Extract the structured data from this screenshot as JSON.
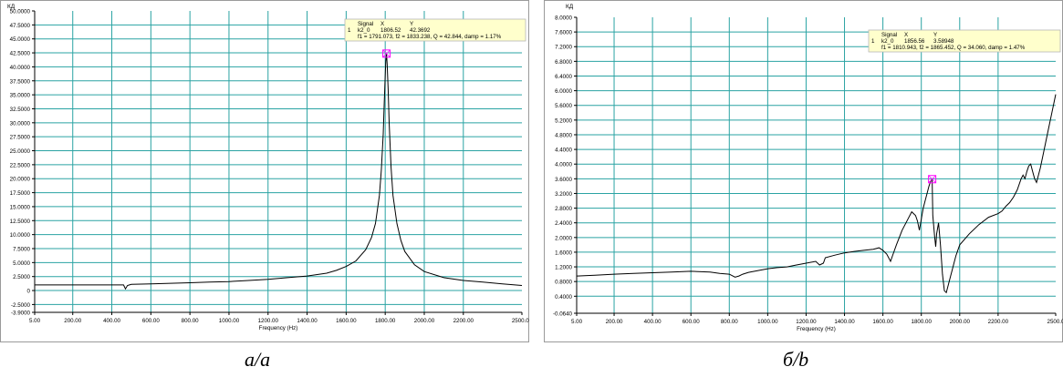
{
  "chart_data": [
    {
      "type": "line",
      "ylabel": "КД",
      "xlabel": "Frequency (Hz)",
      "x_ticks": [
        "5.00",
        "200.00",
        "400.00",
        "600.00",
        "800.00",
        "1000.00",
        "1200.00",
        "1400.00",
        "1600.00",
        "1800.00",
        "2000.00",
        "2200.00",
        "2500.00"
      ],
      "x_tick_values": [
        5,
        200,
        400,
        600,
        800,
        1000,
        1200,
        1400,
        1600,
        1800,
        2000,
        2200,
        2500
      ],
      "y_ticks": [
        "50.0000",
        "47.5000",
        "45.0000",
        "42.5000",
        "40.0000",
        "37.5000",
        "35.0000",
        "32.5000",
        "30.0000",
        "27.5000",
        "25.0000",
        "22.5000",
        "20.0000",
        "17.5000",
        "15.0000",
        "12.5000",
        "10.0000",
        "7.5000",
        "5.0000",
        "2.5000",
        "0",
        "-2.5000",
        "-3.9000"
      ],
      "y_tick_values": [
        50,
        47.5,
        45,
        42.5,
        40,
        37.5,
        35,
        32.5,
        30,
        27.5,
        25,
        22.5,
        20,
        17.5,
        15,
        12.5,
        10,
        7.5,
        5,
        2.5,
        0,
        -2.5,
        -3.9
      ],
      "xlim": [
        5,
        2500
      ],
      "ylim": [
        -3.9,
        50
      ],
      "grid": true,
      "line_color": "#000000",
      "grid_color": "#2aa3a3",
      "marker_color": "#ff00ff",
      "series": [
        {
          "x": [
            5,
            100,
            200,
            300,
            400,
            460,
            470,
            480,
            490,
            500,
            600,
            700,
            800,
            900,
            1000,
            1100,
            1200,
            1300,
            1400,
            1500,
            1550,
            1600,
            1650,
            1700,
            1730,
            1750,
            1770,
            1780,
            1790,
            1795,
            1800,
            1803,
            1806.52,
            1810,
            1815,
            1820,
            1830,
            1840,
            1860,
            1880,
            1900,
            1950,
            2000,
            2100,
            2200,
            2300,
            2400,
            2500
          ],
          "y": [
            1.0,
            1.0,
            1.0,
            1.0,
            1.0,
            1.0,
            0.3,
            0.9,
            1.0,
            1.1,
            1.2,
            1.3,
            1.4,
            1.5,
            1.6,
            1.8,
            2.0,
            2.3,
            2.6,
            3.1,
            3.6,
            4.3,
            5.3,
            7.3,
            9.5,
            12.0,
            17.0,
            21.5,
            28.0,
            33.5,
            38.5,
            41.0,
            42.37,
            40.5,
            36.0,
            30.0,
            22.0,
            17.0,
            12.0,
            9.0,
            7.0,
            4.6,
            3.4,
            2.3,
            1.8,
            1.5,
            1.2,
            0.9
          ]
        }
      ],
      "marker": {
        "x": 1806.52,
        "y": 42.3692
      },
      "readout": {
        "header": [
          "Signal",
          "X",
          "Y"
        ],
        "row_index": "1",
        "signal": "k2_0",
        "x": "1806.52",
        "y": "42.3692",
        "details": "f1 = 1791.073, f2 = 1833.238, Q = 42.844, damp = 1.17%"
      }
    },
    {
      "type": "line",
      "ylabel": "КД",
      "xlabel": "Frequency (Hz)",
      "x_ticks": [
        "5.00",
        "200.00",
        "400.00",
        "600.00",
        "800.00",
        "1000.00",
        "1200.00",
        "1400.00",
        "1600.00",
        "1800.00",
        "2000.00",
        "2200.00",
        "2500.0"
      ],
      "x_tick_values": [
        5,
        200,
        400,
        600,
        800,
        1000,
        1200,
        1400,
        1600,
        1800,
        2000,
        2200,
        2500
      ],
      "y_ticks": [
        "8.0000",
        "7.6000",
        "7.2000",
        "6.8000",
        "6.4000",
        "6.0000",
        "5.6000",
        "5.2000",
        "4.8000",
        "4.4000",
        "4.0000",
        "3.6000",
        "3.2000",
        "2.8000",
        "2.4000",
        "2.0000",
        "1.6000",
        "1.2000",
        "0.8000",
        "0.4000",
        "-0.0640"
      ],
      "y_tick_values": [
        8.0,
        7.6,
        7.2,
        6.8,
        6.4,
        6.0,
        5.6,
        5.2,
        4.8,
        4.4,
        4.0,
        3.6,
        3.2,
        2.8,
        2.4,
        2.0,
        1.6,
        1.2,
        0.8,
        0.4,
        -0.064
      ],
      "xlim": [
        5,
        2500
      ],
      "ylim": [
        -0.064,
        8.0
      ],
      "grid": true,
      "line_color": "#000000",
      "grid_color": "#2aa3a3",
      "marker_color": "#ff00ff",
      "series": [
        {
          "x": [
            5,
            100,
            200,
            300,
            400,
            500,
            600,
            700,
            750,
            800,
            830,
            850,
            870,
            900,
            950,
            1000,
            1050,
            1100,
            1150,
            1200,
            1250,
            1270,
            1290,
            1300,
            1350,
            1400,
            1450,
            1500,
            1550,
            1580,
            1600,
            1620,
            1640,
            1650,
            1670,
            1700,
            1730,
            1750,
            1770,
            1780,
            1790,
            1800,
            1810,
            1820,
            1830,
            1840,
            1850,
            1856.56,
            1860,
            1870,
            1875,
            1880,
            1890,
            1900,
            1910,
            1920,
            1930,
            1940,
            1950,
            1960,
            1970,
            1980,
            2000,
            2050,
            2100,
            2150,
            2200,
            2220,
            2240,
            2260,
            2280,
            2300,
            2320,
            2330,
            2340,
            2350,
            2360,
            2370,
            2380,
            2390,
            2400,
            2420,
            2440,
            2460,
            2480,
            2500
          ],
          "y": [
            0.95,
            0.97,
            1.0,
            1.02,
            1.04,
            1.06,
            1.08,
            1.06,
            1.02,
            1.0,
            0.92,
            0.95,
            1.0,
            1.05,
            1.1,
            1.15,
            1.18,
            1.2,
            1.25,
            1.3,
            1.35,
            1.25,
            1.3,
            1.45,
            1.52,
            1.58,
            1.62,
            1.65,
            1.68,
            1.72,
            1.65,
            1.55,
            1.35,
            1.5,
            1.8,
            2.2,
            2.5,
            2.7,
            2.6,
            2.45,
            2.2,
            2.5,
            2.8,
            3.0,
            3.2,
            3.4,
            3.55,
            3.59,
            2.6,
            2.0,
            1.75,
            2.1,
            2.4,
            1.8,
            1.0,
            0.55,
            0.5,
            0.7,
            0.9,
            1.1,
            1.3,
            1.5,
            1.8,
            2.1,
            2.35,
            2.55,
            2.65,
            2.72,
            2.85,
            2.95,
            3.1,
            3.3,
            3.6,
            3.7,
            3.6,
            3.8,
            3.95,
            4.0,
            3.8,
            3.6,
            3.5,
            3.9,
            4.4,
            4.9,
            5.4,
            5.9
          ]
        }
      ],
      "marker": {
        "x": 1856.56,
        "y": 3.58948
      },
      "readout": {
        "header": [
          "Signal",
          "X",
          "Y"
        ],
        "row_index": "1",
        "signal": "k2_0",
        "x": "1856.56",
        "y": "3.58948",
        "details": "f1 = 1810.943, f2 = 1865.452, Q = 34.060, damp = 1.47%"
      }
    }
  ],
  "captions": [
    "а/a",
    "б/b"
  ]
}
